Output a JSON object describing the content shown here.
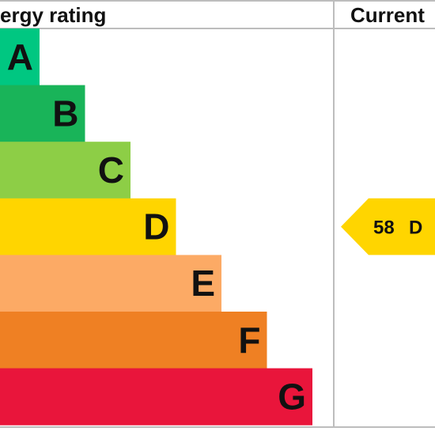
{
  "header": {
    "rating_label": "ergy rating",
    "current_label": "Current"
  },
  "chart_data": {
    "type": "bar",
    "title": "",
    "bands": [
      {
        "letter": "A",
        "color": "#00c781",
        "level": 1
      },
      {
        "letter": "B",
        "color": "#19b459",
        "level": 2
      },
      {
        "letter": "C",
        "color": "#8dce46",
        "level": 3
      },
      {
        "letter": "D",
        "color": "#ffd500",
        "level": 4
      },
      {
        "letter": "E",
        "color": "#fcaa65",
        "level": 5
      },
      {
        "letter": "F",
        "color": "#ef8023",
        "level": 6
      },
      {
        "letter": "G",
        "color": "#e9153b",
        "level": 7
      }
    ],
    "current": {
      "score": "58",
      "band": "D",
      "color": "#ffd500"
    }
  }
}
